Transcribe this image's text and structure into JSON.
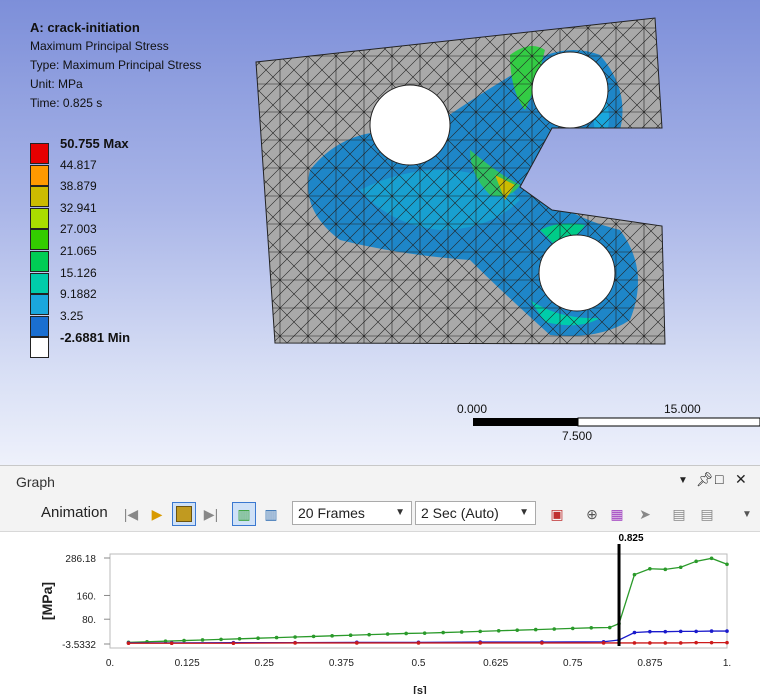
{
  "result": {
    "title": "A: crack-initiation",
    "line1": "Maximum Principal Stress",
    "line2": "Type: Maximum Principal Stress",
    "line3": "Unit: MPa",
    "line4": "Time: 0.825 s"
  },
  "legend": [
    {
      "label": "50.755 Max",
      "color": "#e60000",
      "bold": true
    },
    {
      "label": "44.817",
      "color": "#ff9900"
    },
    {
      "label": "38.879",
      "color": "#ccbb00"
    },
    {
      "label": "32.941",
      "color": "#aadd00"
    },
    {
      "label": "27.003",
      "color": "#33cc00"
    },
    {
      "label": "21.065",
      "color": "#00cc55"
    },
    {
      "label": "15.126",
      "color": "#00ccaa"
    },
    {
      "label": "9.1882",
      "color": "#1aa7dd"
    },
    {
      "label": "3.25",
      "color": "#1a6fd1"
    },
    {
      "label": "-2.6881 Min",
      "color": "#ffffff",
      "bold": true
    }
  ],
  "scale_bar": {
    "left": "0.000",
    "right": "15.000",
    "mid": "7.500"
  },
  "graph": {
    "title": "Graph",
    "animation_label": "Animation",
    "frames_value": "20 Frames",
    "duration_value": "2 Sec (Auto)"
  },
  "chart_data": {
    "type": "line",
    "xlabel": "[s]",
    "ylabel": "[MPa]",
    "xlim": [
      0,
      1
    ],
    "ylim": [
      -3.5332,
      286.18
    ],
    "x_ticks": [
      "0.",
      "0.125",
      "0.25",
      "0.375",
      "0.5",
      "0.625",
      "0.75",
      "0.875",
      "1."
    ],
    "y_ticks": [
      "286.18",
      "160.",
      "80.",
      "-3.5332"
    ],
    "current_time": 0.825,
    "current_time_label": "0.825",
    "series": [
      {
        "color": "#2a9a2a",
        "x": [
          0.03,
          0.06,
          0.09,
          0.12,
          0.15,
          0.18,
          0.21,
          0.24,
          0.27,
          0.3,
          0.33,
          0.36,
          0.39,
          0.42,
          0.45,
          0.48,
          0.51,
          0.54,
          0.57,
          0.6,
          0.63,
          0.66,
          0.69,
          0.72,
          0.75,
          0.78,
          0.81,
          0.825,
          0.85,
          0.875,
          0.9,
          0.925,
          0.95,
          0.975,
          1.0
        ],
        "y": [
          2,
          4,
          6,
          8,
          10,
          12,
          14,
          16,
          18,
          20,
          22,
          24,
          26,
          28,
          30,
          32,
          33,
          35,
          37,
          39,
          41,
          43,
          45,
          47,
          49,
          51,
          52,
          65,
          230,
          250,
          248,
          255,
          275,
          285,
          265
        ]
      },
      {
        "color": "#1a1acc",
        "x": [
          0.03,
          0.1,
          0.2,
          0.3,
          0.4,
          0.5,
          0.6,
          0.7,
          0.8,
          0.825,
          0.85,
          0.875,
          0.9,
          0.925,
          0.95,
          0.975,
          1.0
        ],
        "y": [
          0,
          0,
          1,
          1,
          2,
          2,
          3,
          3,
          4,
          10,
          35,
          38,
          38,
          39,
          39,
          40,
          40
        ]
      },
      {
        "color": "#cc1a1a",
        "x": [
          0.03,
          0.1,
          0.2,
          0.3,
          0.4,
          0.5,
          0.6,
          0.7,
          0.8,
          0.825,
          0.85,
          0.875,
          0.9,
          0.925,
          0.95,
          0.975,
          1.0
        ],
        "y": [
          -1,
          -1,
          -1,
          0,
          0,
          0,
          0,
          0,
          0,
          0,
          0,
          0,
          0,
          0,
          1,
          1,
          1
        ]
      }
    ]
  }
}
